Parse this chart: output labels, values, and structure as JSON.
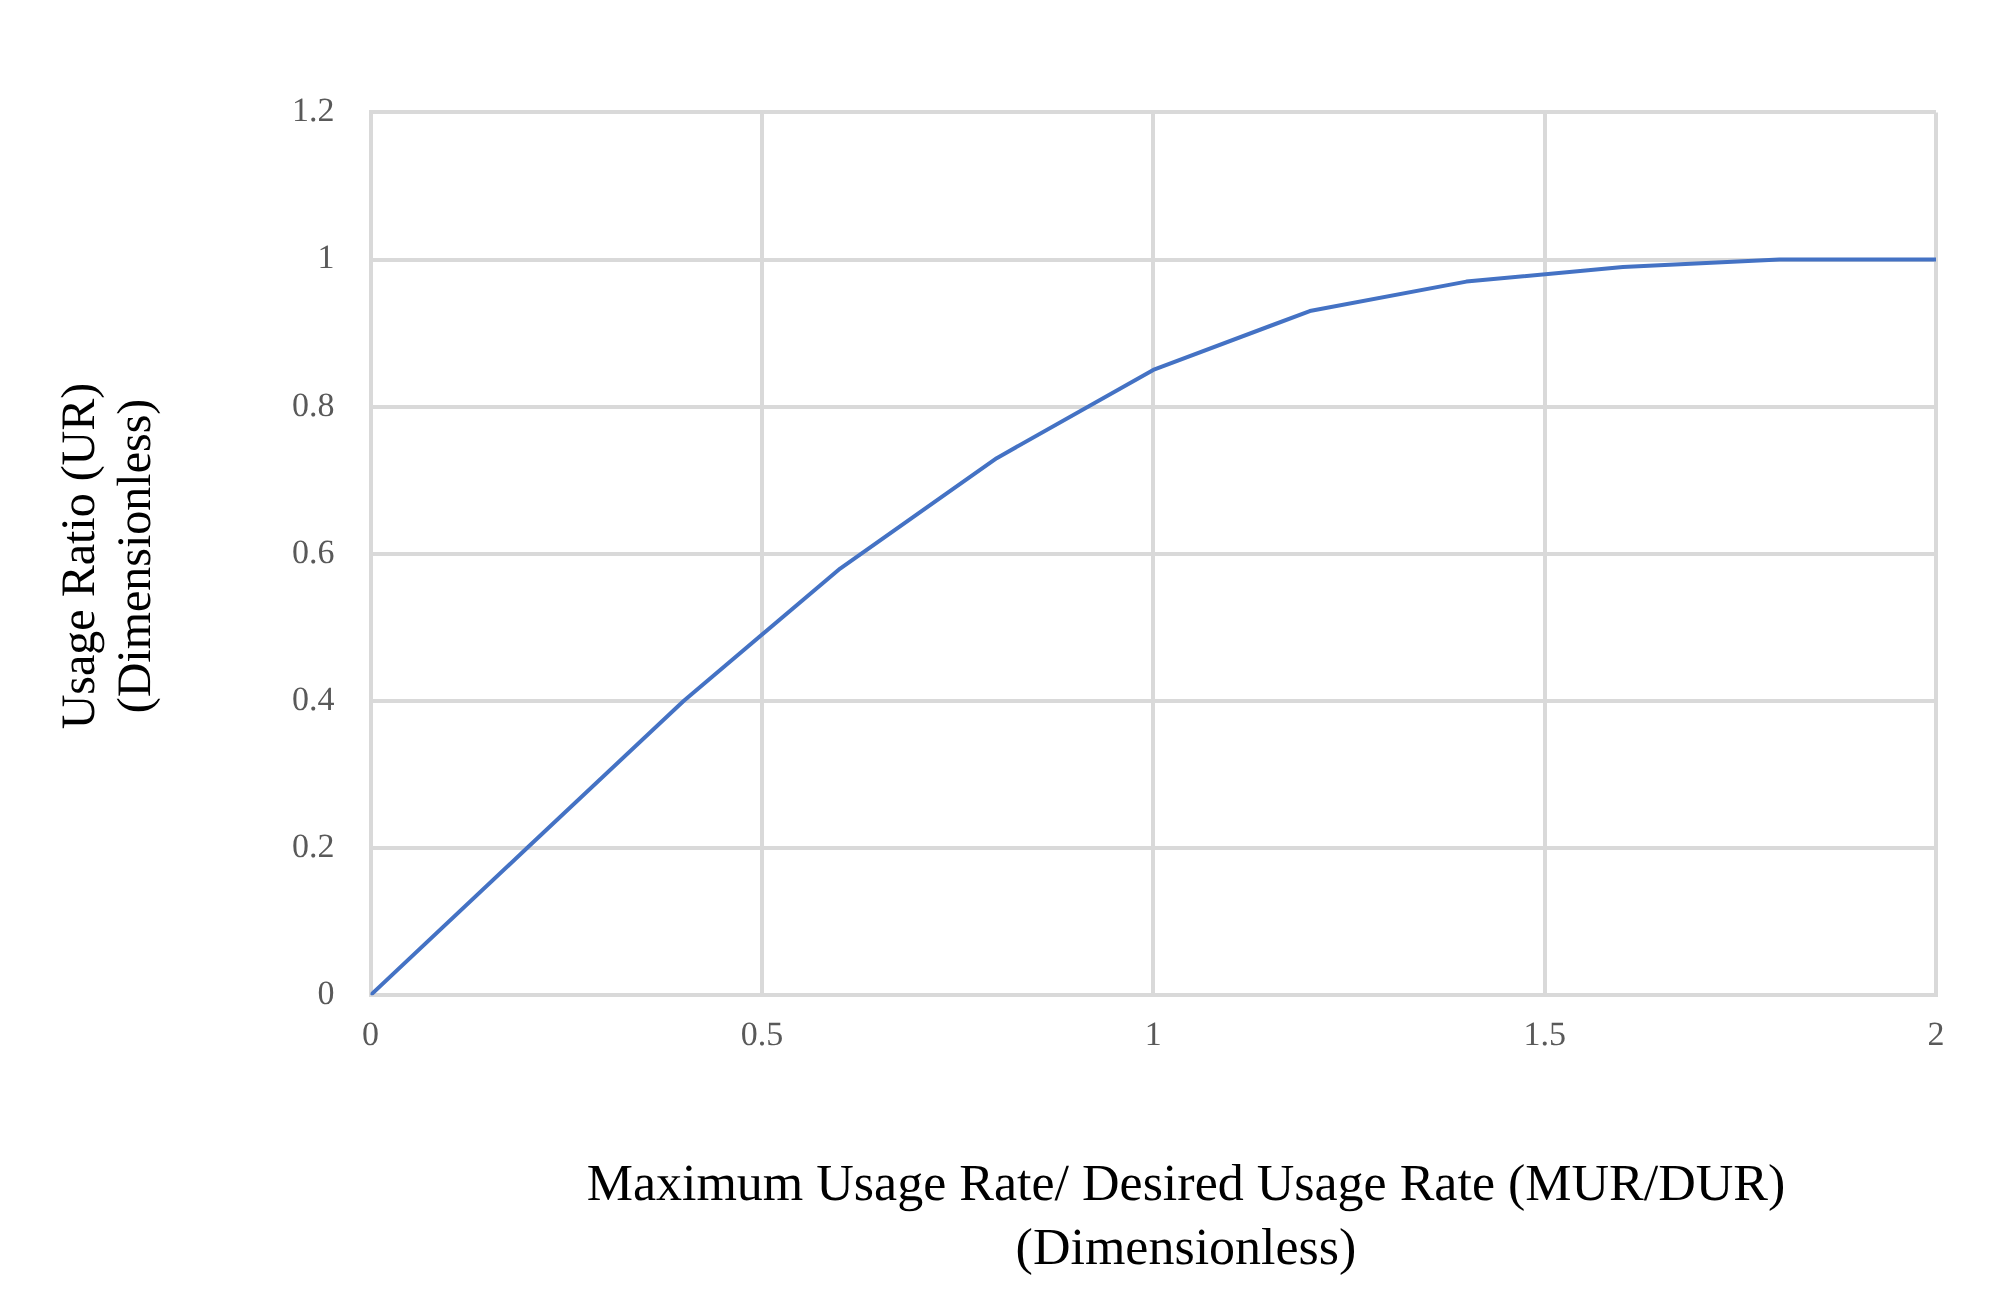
{
  "chart_data": {
    "type": "line",
    "xlabel": "Maximum Usage Rate/ Desired Usage Rate (MUR/DUR) (Dimensionless)",
    "ylabel": "Usage Ratio (UR) (Dimensionless)",
    "x": [
      0,
      0.2,
      0.4,
      0.6,
      0.8,
      1.0,
      1.2,
      1.4,
      1.6,
      1.8,
      2.0
    ],
    "series": [
      {
        "color": "#4472c4",
        "values": [
          0,
          0.2,
          0.4,
          0.58,
          0.73,
          0.85,
          0.93,
          0.97,
          0.99,
          1.0,
          1.0
        ]
      }
    ],
    "xlim": [
      0,
      2
    ],
    "xticks": [
      0,
      0.5,
      1,
      1.5,
      2
    ],
    "ylim": [
      0,
      1.2
    ],
    "yticks": [
      0,
      0.2,
      0.4,
      0.6,
      0.8,
      1,
      1.2
    ],
    "grid": true,
    "legend": false,
    "marker": "none",
    "line_style": "solid"
  }
}
